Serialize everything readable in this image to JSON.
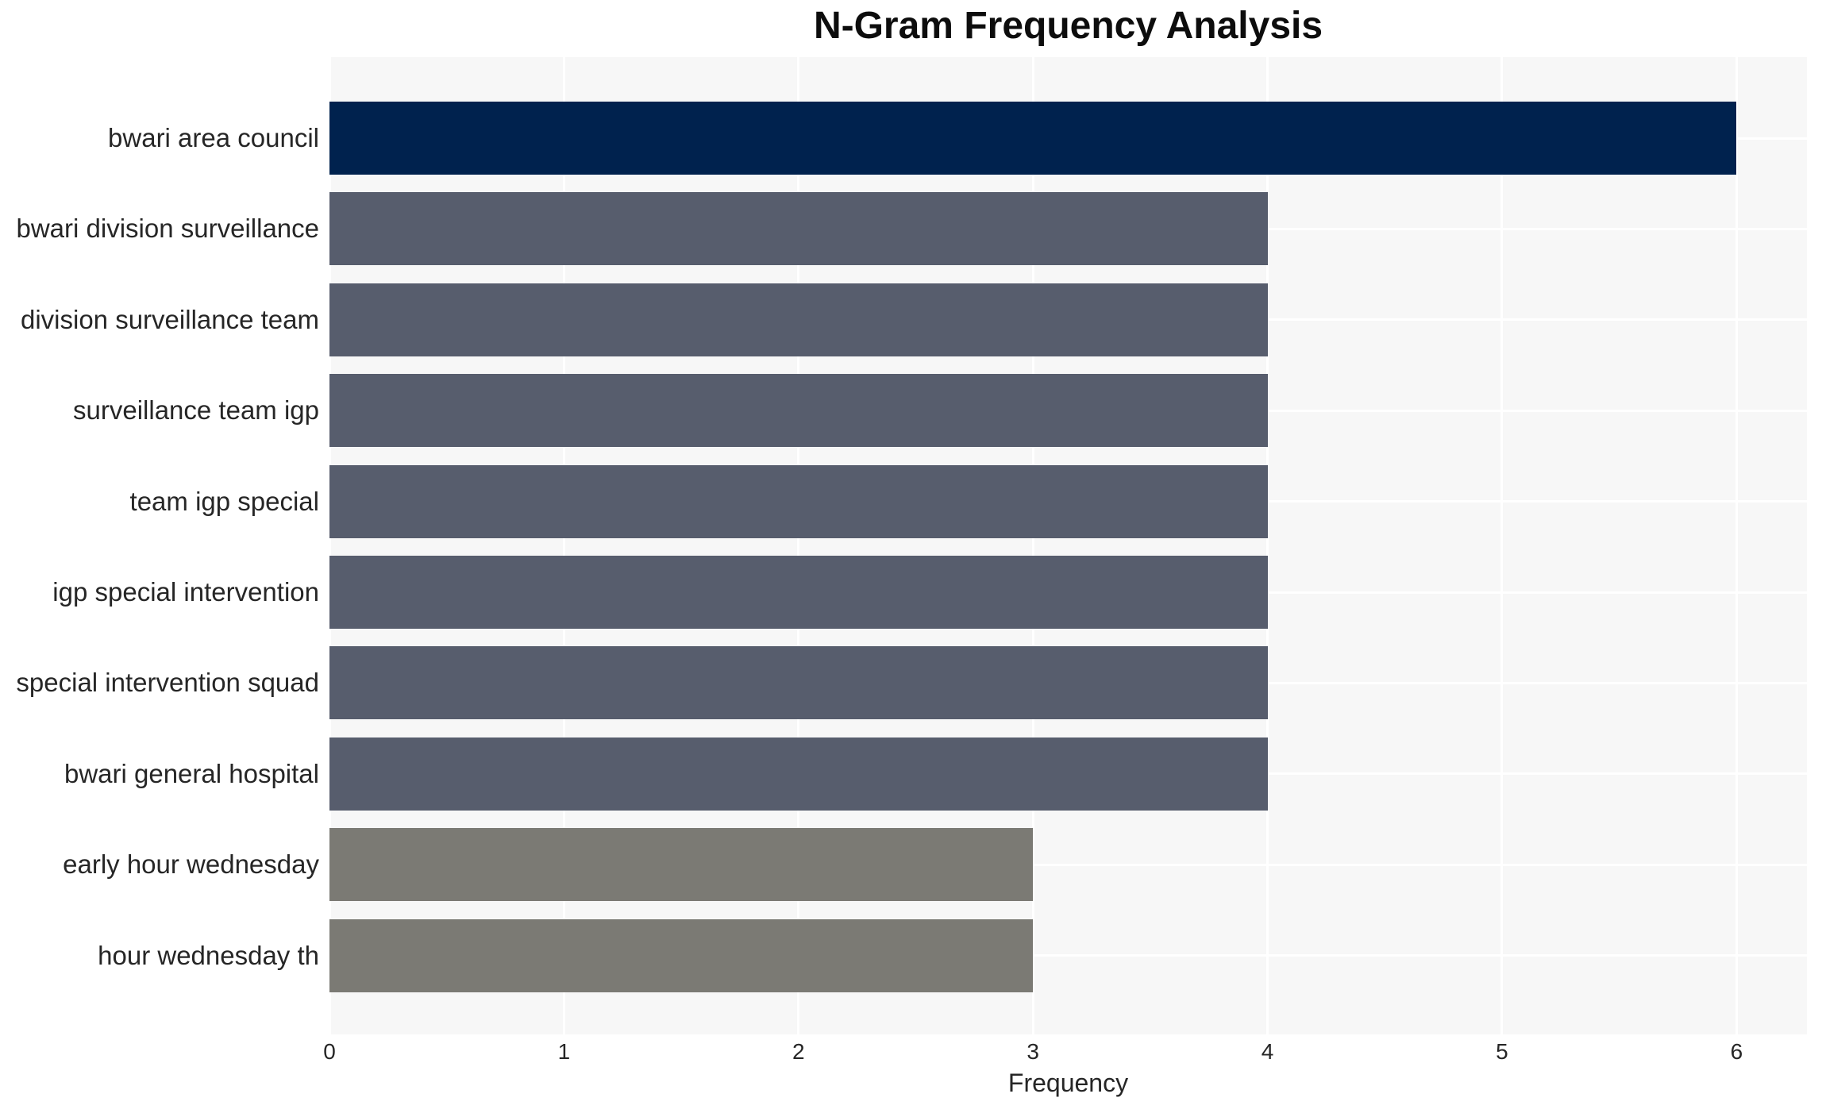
{
  "chart_data": {
    "type": "bar",
    "orientation": "horizontal",
    "title": "N-Gram Frequency Analysis",
    "xlabel": "Frequency",
    "ylabel": "",
    "categories": [
      "bwari area council",
      "bwari division surveillance",
      "division surveillance team",
      "surveillance team igp",
      "team igp special",
      "igp special intervention",
      "special intervention squad",
      "bwari general hospital",
      "early hour wednesday",
      "hour wednesday th"
    ],
    "values": [
      6,
      4,
      4,
      4,
      4,
      4,
      4,
      4,
      3,
      3
    ],
    "bar_colors": [
      "#00224E",
      "#575D6D",
      "#575D6D",
      "#575D6D",
      "#575D6D",
      "#575D6D",
      "#575D6D",
      "#575D6D",
      "#7B7A74",
      "#7B7A74"
    ],
    "xlim": [
      0,
      6.3
    ],
    "x_ticks": [
      0,
      1,
      2,
      3,
      4,
      5,
      6
    ],
    "grid": true,
    "legend": "none",
    "plot_background": "#F7F7F7",
    "grid_color": "#FFFFFF",
    "text_color": "#262626",
    "title_color": "#0D0D0D"
  }
}
